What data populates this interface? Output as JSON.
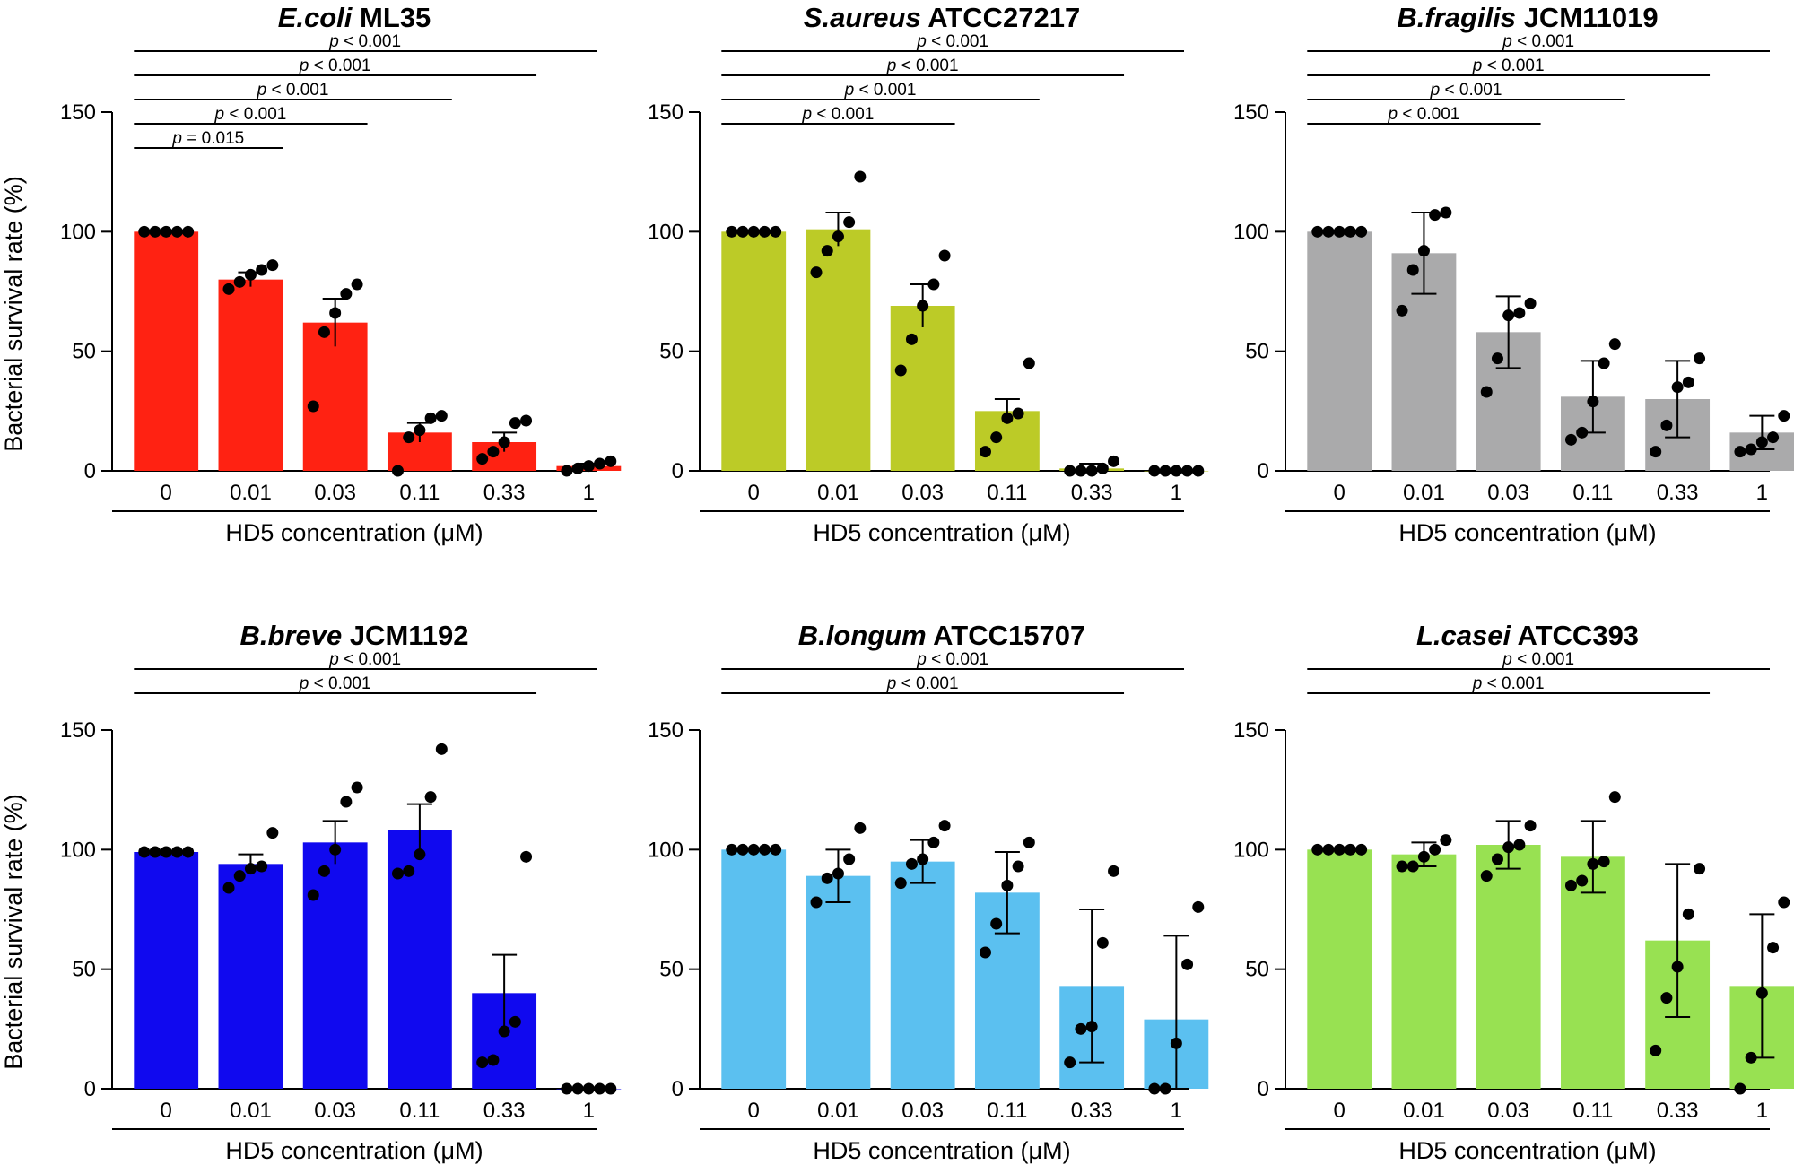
{
  "figure": {
    "ylabel": "Bacterial survival rate (%)",
    "xlabel": "HD5 concentration (μM)"
  },
  "chart_data": [
    {
      "type": "bar",
      "title_italic": "E.coli",
      "title_rest": " ML35",
      "categories": [
        "0",
        "0.01",
        "0.03",
        "0.11",
        "0.33",
        "1"
      ],
      "ylabel": "Bacterial survival rate (%)",
      "xlabel": "HD5 concentration (μM)",
      "ylim": [
        0,
        150
      ],
      "yticks": [
        "0",
        "50",
        "100",
        "150"
      ],
      "color": "#ff2212",
      "series": [
        {
          "values": [
            100,
            80,
            62,
            16,
            12,
            2
          ],
          "error": [
            0,
            3,
            10,
            4,
            4,
            1
          ],
          "points": [
            [
              100,
              100,
              100,
              100,
              100
            ],
            [
              76,
              79,
              82,
              84,
              86
            ],
            [
              27,
              58,
              66,
              74,
              78
            ],
            [
              0,
              14,
              17,
              22,
              23
            ],
            [
              5,
              8,
              12,
              20,
              21
            ],
            [
              0,
              1,
              2,
              3,
              4
            ]
          ]
        }
      ],
      "significance": [
        {
          "from": "0",
          "to": "0.03",
          "label": "= 0.015"
        },
        {
          "from": "0",
          "to": "0.11",
          "label": "< 0.001"
        },
        {
          "from": "0",
          "to": "0.33",
          "label": "< 0.001"
        },
        {
          "from": "0",
          "to": "1",
          "label": "< 0.001"
        },
        {
          "from": "0",
          "to": "1.2",
          "label": "< 0.001"
        }
      ]
    },
    {
      "type": "bar",
      "title_italic": "S.aureus",
      "title_rest": " ATCC27217",
      "categories": [
        "0",
        "0.01",
        "0.03",
        "0.11",
        "0.33",
        "1"
      ],
      "ylabel": "Bacterial survival rate (%)",
      "xlabel": "HD5 concentration (μM)",
      "ylim": [
        0,
        150
      ],
      "yticks": [
        "0",
        "50",
        "100",
        "150"
      ],
      "color": "#bccb27",
      "series": [
        {
          "values": [
            100,
            101,
            69,
            25,
            1,
            0
          ],
          "error": [
            0,
            7,
            9,
            5,
            2,
            0
          ],
          "points": [
            [
              100,
              100,
              100,
              100,
              100
            ],
            [
              83,
              92,
              98,
              104,
              123
            ],
            [
              42,
              55,
              69,
              78,
              90
            ],
            [
              8,
              14,
              22,
              24,
              45
            ],
            [
              0,
              0,
              0,
              1,
              4
            ],
            [
              0,
              0,
              0,
              0,
              0
            ]
          ]
        }
      ],
      "significance": [
        {
          "from": "0",
          "to": "0.11",
          "label": "< 0.001"
        },
        {
          "from": "0",
          "to": "0.33",
          "label": "< 0.001"
        },
        {
          "from": "0",
          "to": "1",
          "label": "< 0.001"
        },
        {
          "from": "0",
          "to": "1.2",
          "label": "< 0.001"
        }
      ]
    },
    {
      "type": "bar",
      "title_italic": "B.fragilis",
      "title_rest": " JCM11019",
      "categories": [
        "0",
        "0.01",
        "0.03",
        "0.11",
        "0.33",
        "1"
      ],
      "ylabel": "Bacterial survival rate (%)",
      "xlabel": "HD5 concentration (μM)",
      "ylim": [
        0,
        150
      ],
      "yticks": [
        "0",
        "50",
        "100",
        "150"
      ],
      "color": "#aaaaab",
      "series": [
        {
          "values": [
            100,
            91,
            58,
            31,
            30,
            16
          ],
          "error": [
            0,
            17,
            15,
            15,
            16,
            7
          ],
          "points": [
            [
              100,
              100,
              100,
              100,
              100
            ],
            [
              67,
              84,
              92,
              107,
              108
            ],
            [
              33,
              47,
              65,
              66,
              70
            ],
            [
              13,
              16,
              29,
              45,
              53
            ],
            [
              8,
              19,
              35,
              37,
              47
            ],
            [
              8,
              9,
              12,
              14,
              23
            ]
          ]
        }
      ],
      "significance": [
        {
          "from": "0",
          "to": "0.11",
          "label": "< 0.001"
        },
        {
          "from": "0",
          "to": "0.33",
          "label": "< 0.001"
        },
        {
          "from": "0",
          "to": "1",
          "label": "< 0.001"
        },
        {
          "from": "0",
          "to": "1.2",
          "label": "< 0.001"
        }
      ]
    },
    {
      "type": "bar",
      "title_italic": "B.breve",
      "title_rest": " JCM1192",
      "categories": [
        "0",
        "0.01",
        "0.03",
        "0.11",
        "0.33",
        "1"
      ],
      "ylabel": "Bacterial survival rate (%)",
      "xlabel": "HD5 concentration (μM)",
      "ylim": [
        0,
        150
      ],
      "yticks": [
        "0",
        "50",
        "100",
        "150"
      ],
      "color": "#1009ef",
      "series": [
        {
          "values": [
            99,
            94,
            103,
            108,
            40,
            0
          ],
          "error": [
            0,
            4,
            9,
            11,
            16,
            0
          ],
          "points": [
            [
              99,
              99,
              99,
              99,
              99
            ],
            [
              84,
              89,
              92,
              93,
              107
            ],
            [
              81,
              91,
              100,
              120,
              126
            ],
            [
              90,
              91,
              98,
              122,
              142
            ],
            [
              11,
              12,
              24,
              28,
              97
            ],
            [
              0,
              0,
              0,
              0,
              0
            ]
          ]
        }
      ],
      "significance": [
        {
          "from": "0",
          "to": "1",
          "label": "< 0.001"
        },
        {
          "from": "0",
          "to": "1.2",
          "label": "< 0.001"
        }
      ]
    },
    {
      "type": "bar",
      "title_italic": "B.longum",
      "title_rest": " ATCC15707",
      "categories": [
        "0",
        "0.01",
        "0.03",
        "0.11",
        "0.33",
        "1"
      ],
      "ylabel": "Bacterial survival rate (%)",
      "xlabel": "HD5 concentration (μM)",
      "ylim": [
        0,
        150
      ],
      "yticks": [
        "0",
        "50",
        "100",
        "150"
      ],
      "color": "#5bc0f0",
      "series": [
        {
          "values": [
            100,
            89,
            95,
            82,
            43,
            29
          ],
          "error": [
            0,
            11,
            9,
            17,
            32,
            35
          ],
          "points": [
            [
              100,
              100,
              100,
              100,
              100
            ],
            [
              78,
              88,
              90,
              96,
              109
            ],
            [
              86,
              94,
              96,
              103,
              110
            ],
            [
              57,
              69,
              85,
              93,
              103
            ],
            [
              11,
              25,
              26,
              61,
              91
            ],
            [
              0,
              0,
              19,
              52,
              76
            ]
          ]
        }
      ],
      "significance": [
        {
          "from": "0",
          "to": "1",
          "label": "< 0.001"
        },
        {
          "from": "0",
          "to": "1.2",
          "label": "< 0.001"
        }
      ]
    },
    {
      "type": "bar",
      "title_italic": "L.casei",
      "title_rest": " ATCC393",
      "categories": [
        "0",
        "0.01",
        "0.03",
        "0.11",
        "0.33",
        "1"
      ],
      "ylabel": "Bacterial survival rate (%)",
      "xlabel": "HD5 concentration (μM)",
      "ylim": [
        0,
        150
      ],
      "yticks": [
        "0",
        "50",
        "100",
        "150"
      ],
      "color": "#98e152",
      "series": [
        {
          "values": [
            100,
            98,
            102,
            97,
            62,
            43
          ],
          "error": [
            0,
            5,
            10,
            15,
            32,
            30
          ],
          "points": [
            [
              100,
              100,
              100,
              100,
              100
            ],
            [
              93,
              93,
              97,
              100,
              104
            ],
            [
              89,
              96,
              101,
              102,
              110
            ],
            [
              85,
              87,
              94,
              95,
              122
            ],
            [
              16,
              38,
              51,
              73,
              92
            ],
            [
              0,
              13,
              40,
              59,
              78
            ]
          ]
        }
      ],
      "significance": [
        {
          "from": "0",
          "to": "1",
          "label": "< 0.001"
        },
        {
          "from": "0",
          "to": "1.2",
          "label": "< 0.001"
        }
      ]
    }
  ]
}
